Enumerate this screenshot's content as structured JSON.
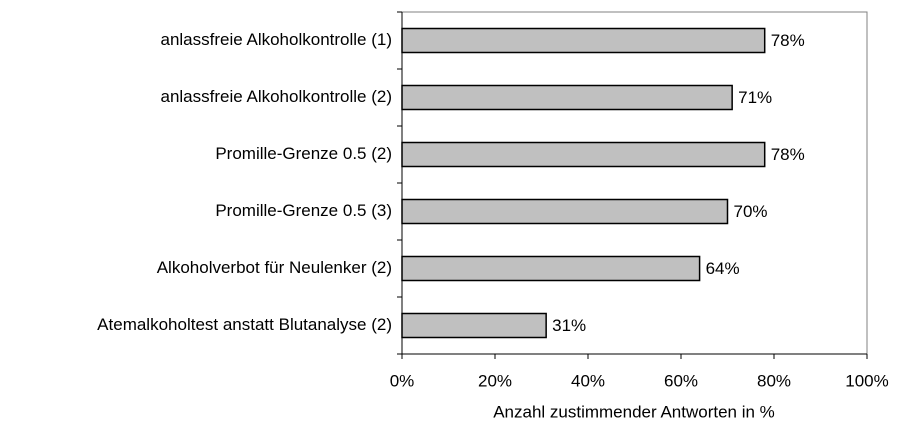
{
  "chart_data": {
    "type": "barh",
    "categories": [
      "anlassfreie Alkoholkontrolle (1)",
      "anlassfreie Alkoholkontrolle (2)",
      "Promille-Grenze 0.5 (2)",
      "Promille-Grenze 0.5 (3)",
      "Alkoholverbot für Neulenker (2)",
      "Atemalkoholtest anstatt Blutanalyse (2)"
    ],
    "values": [
      78,
      71,
      78,
      70,
      64,
      31
    ],
    "value_labels": [
      "78%",
      "71%",
      "78%",
      "70%",
      "64%",
      "31%"
    ],
    "color": "#c0c0c0",
    "xlabel": "Anzahl zustimmender Antworten in %",
    "xlim": [
      0,
      100
    ],
    "xticks": [
      {
        "value": 0,
        "label": "0%"
      },
      {
        "value": 20,
        "label": "20%"
      },
      {
        "value": 40,
        "label": "40%"
      },
      {
        "value": 60,
        "label": "60%"
      },
      {
        "value": 80,
        "label": "80%"
      },
      {
        "value": 100,
        "label": "100%"
      }
    ],
    "grid": false
  }
}
